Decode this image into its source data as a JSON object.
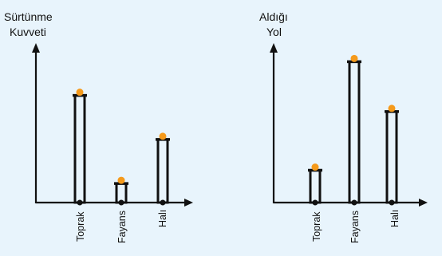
{
  "chart_data": [
    {
      "type": "bar",
      "ylabel_lines": [
        "Sürtünme",
        "Kuvveti"
      ],
      "categories": [
        "Toprak",
        "Fayans",
        "Halı"
      ],
      "values": [
        0.73,
        0.13,
        0.43
      ],
      "ylim": [
        0,
        1
      ],
      "grid": false,
      "marker_color": "#f59a1b"
    },
    {
      "type": "bar",
      "ylabel_lines": [
        "Aldığı",
        "Yol"
      ],
      "categories": [
        "Toprak",
        "Fayans",
        "Halı"
      ],
      "values": [
        0.22,
        0.96,
        0.62
      ],
      "ylim": [
        0,
        1
      ],
      "grid": false,
      "marker_color": "#f59a1b"
    }
  ]
}
